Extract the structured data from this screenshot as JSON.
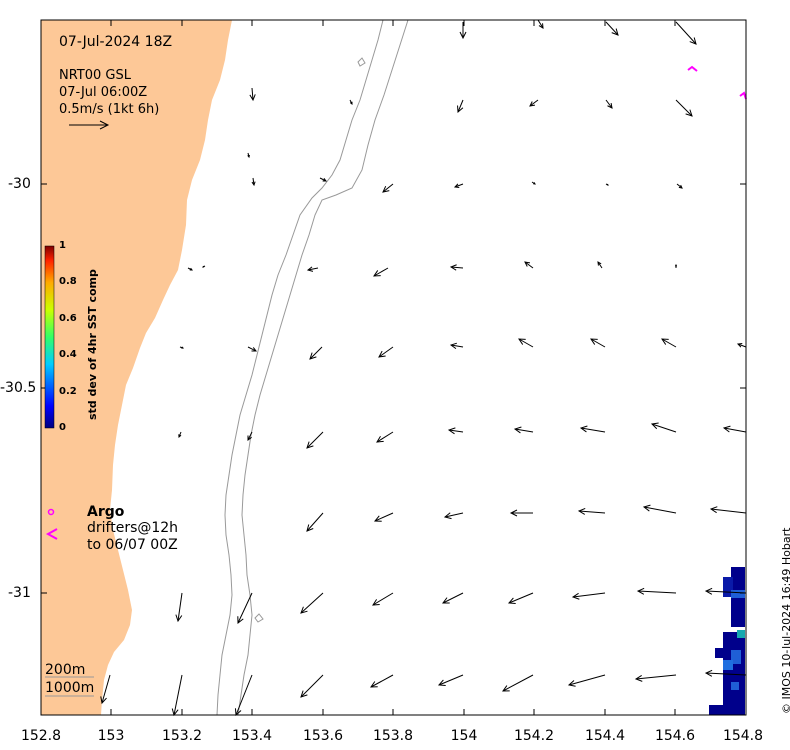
{
  "header": {
    "datetime": "07-Jul-2024 18Z",
    "product": "NRT00 GSL",
    "current_time": "07-Jul 06:00Z",
    "scale_text": "0.5m/s (1kt 6h)"
  },
  "legend": {
    "argo_label": "Argo",
    "drifters_line1": "drifters@12h",
    "drifters_line2": "to 06/07 00Z",
    "depth_200": "200m",
    "depth_1000": "1000m",
    "drifter_color": "#ff00ff"
  },
  "colorbar": {
    "title": "std dev of 4hr SST comp",
    "ticks": [
      "1",
      "0.8",
      "0.6",
      "0.4",
      "0.2",
      "0"
    ]
  },
  "axes": {
    "x_ticks": [
      "152.8",
      "153",
      "153.2",
      "153.4",
      "153.6",
      "153.8",
      "154",
      "154.2",
      "154.4",
      "154.6",
      "154.8"
    ],
    "y_ticks": [
      "-30",
      "-30.5",
      "-31"
    ],
    "x_range": [
      152.8,
      154.8
    ],
    "y_range": [
      -31.3,
      -29.6
    ]
  },
  "colors": {
    "land": "#fdc897",
    "contour": "#999999",
    "sst_low": "#00008b",
    "sst_mid": "#1f5fd6",
    "sst_high": "#15a8b0"
  },
  "credit": "© IMOS 10-Jul-2024 16:49 Hobart"
}
